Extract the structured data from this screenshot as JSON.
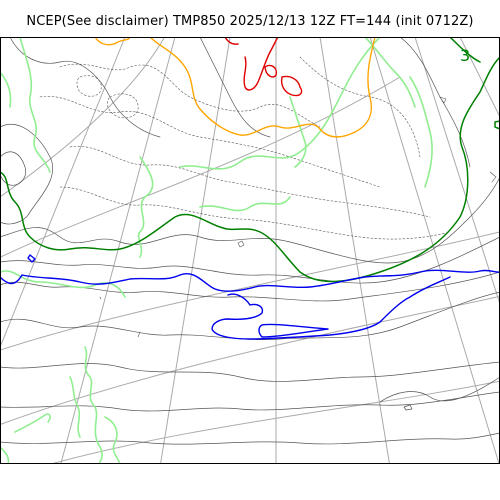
{
  "title": "NCEP(See disclaimer) TMP850 2025/12/13 12Z FT=144 (init 0712Z)",
  "contour_labels": [
    "3"
  ],
  "colors": {
    "graticule": "#aaaaaa",
    "isoline": "#555555",
    "isoline_dashed": "#555555",
    "green_light": "#90ee90",
    "green_dark": "#008000",
    "orange": "#ffa500",
    "red": "#e00000",
    "blue": "#0000ee",
    "frame": "#000000"
  }
}
